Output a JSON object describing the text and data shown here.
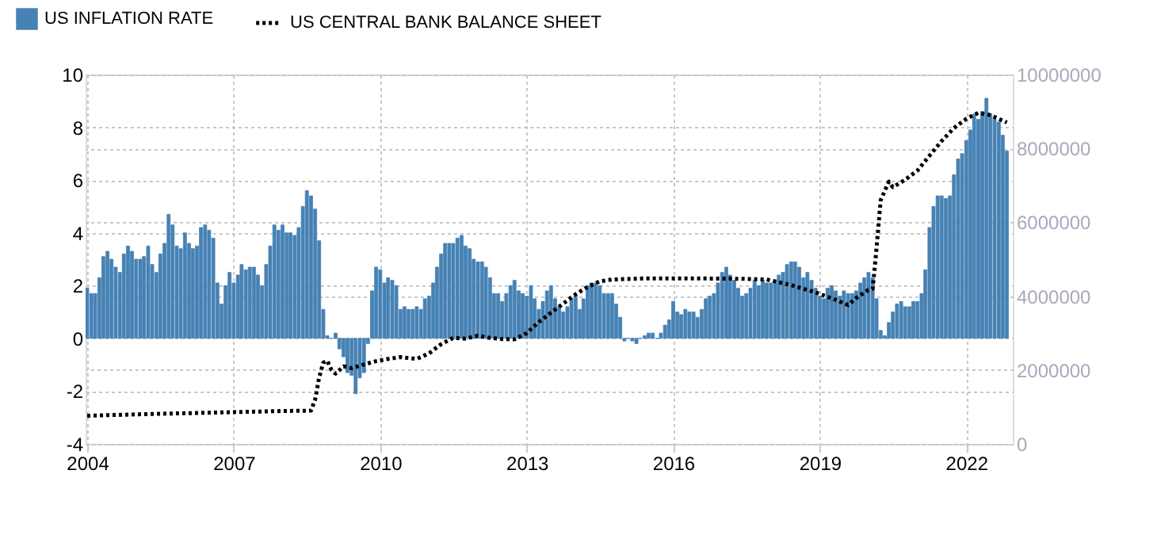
{
  "chart_data": {
    "type": "bar",
    "legend": "top left",
    "grid": true,
    "xlim": [
      "2003-12-20",
      "2022-12-15"
    ],
    "xticks": [
      "2004",
      "2007",
      "2010",
      "2013",
      "2016",
      "2019",
      "2022"
    ],
    "ylim": [
      -4,
      10
    ],
    "yticks": [
      -4,
      -2,
      0,
      2,
      4,
      6,
      8,
      10
    ],
    "y2lim": [
      0,
      10000000
    ],
    "y2ticks": [
      0,
      2000000,
      4000000,
      6000000,
      8000000,
      10000000
    ],
    "x": [
      "2004-01",
      "2004-02",
      "2004-03",
      "2004-04",
      "2004-05",
      "2004-06",
      "2004-07",
      "2004-08",
      "2004-09",
      "2004-10",
      "2004-11",
      "2004-12",
      "2005-01",
      "2005-02",
      "2005-03",
      "2005-04",
      "2005-05",
      "2005-06",
      "2005-07",
      "2005-08",
      "2005-09",
      "2005-10",
      "2005-11",
      "2005-12",
      "2006-01",
      "2006-02",
      "2006-03",
      "2006-04",
      "2006-05",
      "2006-06",
      "2006-07",
      "2006-08",
      "2006-09",
      "2006-10",
      "2006-11",
      "2006-12",
      "2007-01",
      "2007-02",
      "2007-03",
      "2007-04",
      "2007-05",
      "2007-06",
      "2007-07",
      "2007-08",
      "2007-09",
      "2007-10",
      "2007-11",
      "2007-12",
      "2008-01",
      "2008-02",
      "2008-03",
      "2008-04",
      "2008-05",
      "2008-06",
      "2008-07",
      "2008-08",
      "2008-09",
      "2008-10",
      "2008-11",
      "2008-12",
      "2009-01",
      "2009-02",
      "2009-03",
      "2009-04",
      "2009-05",
      "2009-06",
      "2009-07",
      "2009-08",
      "2009-09",
      "2009-10",
      "2009-11",
      "2009-12",
      "2010-01",
      "2010-02",
      "2010-03",
      "2010-04",
      "2010-05",
      "2010-06",
      "2010-07",
      "2010-08",
      "2010-09",
      "2010-10",
      "2010-11",
      "2010-12",
      "2011-01",
      "2011-02",
      "2011-03",
      "2011-04",
      "2011-05",
      "2011-06",
      "2011-07",
      "2011-08",
      "2011-09",
      "2011-10",
      "2011-11",
      "2011-12",
      "2012-01",
      "2012-02",
      "2012-03",
      "2012-04",
      "2012-05",
      "2012-06",
      "2012-07",
      "2012-08",
      "2012-09",
      "2012-10",
      "2012-11",
      "2012-12",
      "2013-01",
      "2013-02",
      "2013-03",
      "2013-04",
      "2013-05",
      "2013-06",
      "2013-07",
      "2013-08",
      "2013-09",
      "2013-10",
      "2013-11",
      "2013-12",
      "2014-01",
      "2014-02",
      "2014-03",
      "2014-04",
      "2014-05",
      "2014-06",
      "2014-07",
      "2014-08",
      "2014-09",
      "2014-10",
      "2014-11",
      "2014-12",
      "2015-01",
      "2015-02",
      "2015-03",
      "2015-04",
      "2015-05",
      "2015-06",
      "2015-07",
      "2015-08",
      "2015-09",
      "2015-10",
      "2015-11",
      "2015-12",
      "2016-01",
      "2016-02",
      "2016-03",
      "2016-04",
      "2016-05",
      "2016-06",
      "2016-07",
      "2016-08",
      "2016-09",
      "2016-10",
      "2016-11",
      "2016-12",
      "2017-01",
      "2017-02",
      "2017-03",
      "2017-04",
      "2017-05",
      "2017-06",
      "2017-07",
      "2017-08",
      "2017-09",
      "2017-10",
      "2017-11",
      "2017-12",
      "2018-01",
      "2018-02",
      "2018-03",
      "2018-04",
      "2018-05",
      "2018-06",
      "2018-07",
      "2018-08",
      "2018-09",
      "2018-10",
      "2018-11",
      "2018-12",
      "2019-01",
      "2019-02",
      "2019-03",
      "2019-04",
      "2019-05",
      "2019-06",
      "2019-07",
      "2019-08",
      "2019-09",
      "2019-10",
      "2019-11",
      "2019-12",
      "2020-01",
      "2020-02",
      "2020-03",
      "2020-04",
      "2020-05",
      "2020-06",
      "2020-07",
      "2020-08",
      "2020-09",
      "2020-10",
      "2020-11",
      "2020-12",
      "2021-01",
      "2021-02",
      "2021-03",
      "2021-04",
      "2021-05",
      "2021-06",
      "2021-07",
      "2021-08",
      "2021-09",
      "2021-10",
      "2021-11",
      "2021-12",
      "2022-01",
      "2022-02",
      "2022-03",
      "2022-04",
      "2022-05",
      "2022-06",
      "2022-07",
      "2022-08",
      "2022-09",
      "2022-10",
      "2022-11"
    ],
    "series": [
      {
        "name": "US INFLATION RATE",
        "color": "#4682b4",
        "values": [
          1.9,
          1.7,
          1.7,
          2.3,
          3.1,
          3.3,
          3.0,
          2.7,
          2.5,
          3.2,
          3.5,
          3.3,
          3.0,
          3.0,
          3.1,
          3.5,
          2.8,
          2.5,
          3.2,
          3.6,
          4.7,
          4.3,
          3.5,
          3.4,
          4.0,
          3.6,
          3.4,
          3.5,
          4.2,
          4.3,
          4.1,
          3.8,
          2.1,
          1.3,
          2.0,
          2.5,
          2.1,
          2.4,
          2.8,
          2.6,
          2.7,
          2.7,
          2.4,
          2.0,
          2.8,
          3.5,
          4.3,
          4.1,
          4.3,
          4.0,
          4.0,
          3.9,
          4.2,
          5.0,
          5.6,
          5.4,
          4.9,
          3.7,
          1.1,
          0.1,
          0.0,
          0.2,
          -0.4,
          -0.7,
          -1.3,
          -1.4,
          -2.1,
          -1.5,
          -1.3,
          -0.2,
          1.8,
          2.7,
          2.6,
          2.1,
          2.3,
          2.2,
          2.0,
          1.1,
          1.2,
          1.1,
          1.1,
          1.2,
          1.1,
          1.5,
          1.6,
          2.1,
          2.7,
          3.2,
          3.6,
          3.6,
          3.6,
          3.8,
          3.9,
          3.5,
          3.4,
          3.0,
          2.9,
          2.9,
          2.7,
          2.3,
          1.7,
          1.7,
          1.4,
          1.7,
          2.0,
          2.2,
          1.8,
          1.7,
          1.6,
          2.0,
          1.5,
          1.1,
          1.4,
          1.8,
          2.0,
          1.5,
          1.2,
          1.0,
          1.2,
          1.5,
          1.6,
          1.1,
          1.5,
          2.0,
          2.1,
          2.1,
          2.0,
          1.7,
          1.7,
          1.7,
          1.3,
          0.8,
          -0.1,
          0.0,
          -0.1,
          -0.2,
          0.0,
          0.1,
          0.2,
          0.2,
          0.0,
          0.2,
          0.5,
          0.7,
          1.4,
          1.0,
          0.9,
          1.1,
          1.0,
          1.0,
          0.8,
          1.1,
          1.5,
          1.6,
          1.7,
          2.1,
          2.5,
          2.7,
          2.4,
          2.2,
          1.9,
          1.6,
          1.7,
          1.9,
          2.2,
          2.0,
          2.2,
          2.1,
          2.1,
          2.2,
          2.4,
          2.5,
          2.8,
          2.9,
          2.9,
          2.7,
          2.3,
          2.5,
          2.2,
          1.9,
          1.6,
          1.5,
          1.9,
          2.0,
          1.8,
          1.6,
          1.8,
          1.7,
          1.7,
          1.8,
          2.1,
          2.3,
          2.5,
          2.3,
          1.5,
          0.3,
          0.1,
          0.6,
          1.0,
          1.3,
          1.4,
          1.2,
          1.2,
          1.4,
          1.4,
          1.7,
          2.6,
          4.2,
          5.0,
          5.4,
          5.4,
          5.3,
          5.4,
          6.2,
          6.8,
          7.0,
          7.5,
          7.9,
          8.5,
          8.3,
          8.6,
          9.1,
          8.5,
          8.3,
          8.2,
          7.7,
          7.1
        ]
      },
      {
        "name": "US CENTRAL BANK BALANCE SHEET",
        "type": "line",
        "axis": "y2",
        "color": "#000000",
        "line_style": "dotted",
        "x": [
          "2004-01",
          "2005-01",
          "2006-01",
          "2007-01",
          "2008-01",
          "2008-08",
          "2008-09",
          "2008-10",
          "2008-11",
          "2008-12",
          "2009-01",
          "2009-02",
          "2009-04",
          "2009-06",
          "2009-09",
          "2009-12",
          "2010-03",
          "2010-06",
          "2010-10",
          "2011-01",
          "2011-04",
          "2011-07",
          "2011-10",
          "2012-01",
          "2012-04",
          "2012-07",
          "2012-10",
          "2013-01",
          "2013-04",
          "2013-07",
          "2013-10",
          "2014-01",
          "2014-04",
          "2014-07",
          "2014-10",
          "2015-06",
          "2016-06",
          "2017-06",
          "2017-12",
          "2018-06",
          "2018-12",
          "2019-05",
          "2019-08",
          "2019-10",
          "2020-01",
          "2020-02",
          "2020-03",
          "2020-04",
          "2020-06",
          "2020-07",
          "2020-10",
          "2021-01",
          "2021-04",
          "2021-07",
          "2021-10",
          "2022-01",
          "2022-04",
          "2022-07",
          "2022-11"
        ],
        "values": [
          760000,
          800000,
          830000,
          860000,
          890000,
          900000,
          1200000,
          1800000,
          2200000,
          2250000,
          2000000,
          1900000,
          2100000,
          2050000,
          2150000,
          2240000,
          2300000,
          2350000,
          2300000,
          2450000,
          2700000,
          2870000,
          2850000,
          2930000,
          2870000,
          2840000,
          2830000,
          3000000,
          3300000,
          3550000,
          3800000,
          4050000,
          4250000,
          4400000,
          4450000,
          4480000,
          4480000,
          4470000,
          4450000,
          4300000,
          4100000,
          3900000,
          3760000,
          3950000,
          4170000,
          4200000,
          5300000,
          6600000,
          7100000,
          6950000,
          7150000,
          7400000,
          7800000,
          8200000,
          8550000,
          8800000,
          8960000,
          8900000,
          8700000
        ]
      }
    ]
  }
}
